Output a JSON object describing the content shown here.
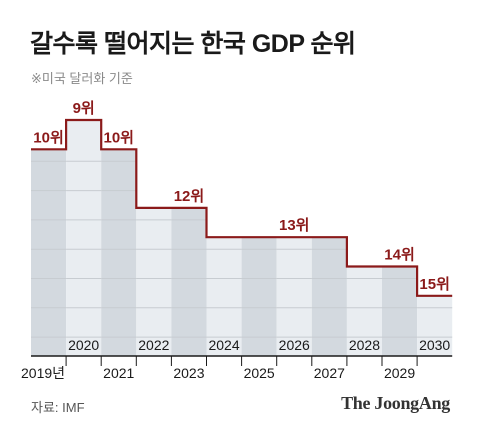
{
  "title": "갈수록 떨어지는 한국 GDP 순위",
  "subtitle": "※미국 달러화 기준",
  "source": "자료: IMF",
  "brand": "The JoongAng",
  "colors": {
    "line": "#8b1a1a",
    "bar_light": "#e9edf1",
    "bar_dark": "#d3d9df",
    "axis": "#1a1a1a",
    "grid": "#c7ccd1"
  },
  "chart_data": {
    "type": "line",
    "title": "갈수록 떨어지는 한국 GDP 순위",
    "subtitle": "※미국 달러화 기준",
    "xlabel": "",
    "ylabel": "",
    "x": [
      2019,
      2020,
      2021,
      2022,
      2023,
      2024,
      2025,
      2026,
      2027,
      2028,
      2029,
      2030
    ],
    "series": [
      {
        "values": [
          10,
          9,
          10,
          12,
          12,
          13,
          13,
          13,
          13,
          14,
          14,
          15
        ]
      }
    ],
    "rank_labels": [
      {
        "x": 2019,
        "text": "10위"
      },
      {
        "x": 2020,
        "text": "9위"
      },
      {
        "x": 2021,
        "text": "10위"
      },
      {
        "x": 2023,
        "text": "12위"
      },
      {
        "x": 2026,
        "text": "13위"
      },
      {
        "x": 2029,
        "text": "14위"
      },
      {
        "x": 2030,
        "text": "15위"
      }
    ],
    "x_ticks_bottom": [
      "2019년",
      "2021",
      "2023",
      "2025",
      "2027",
      "2029"
    ],
    "x_ticks_top": [
      "2020",
      "2022",
      "2024",
      "2026",
      "2028",
      "2030"
    ],
    "step": true,
    "grid": true
  }
}
